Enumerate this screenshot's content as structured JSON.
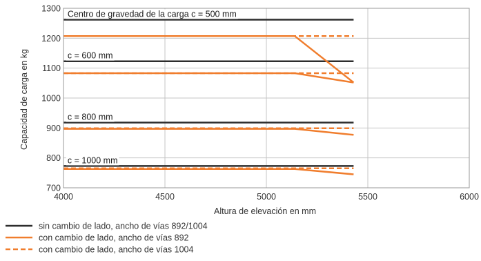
{
  "chart_data": {
    "type": "line",
    "x_label": "Altura de elevación en mm",
    "y_label": "Capacidad de carga en kg",
    "xlim": [
      4000,
      6000
    ],
    "ylim": [
      700,
      1300
    ],
    "x_ticks": [
      4000,
      4500,
      5000,
      5500,
      6000
    ],
    "y_ticks": [
      700,
      800,
      900,
      1000,
      1100,
      1200,
      1300
    ],
    "grid": true,
    "annotations": [
      {
        "text": "Centro de gravedad de la carga c = 500 mm",
        "x": 4020,
        "y": 1262
      },
      {
        "text": "c = 600 mm",
        "x": 4020,
        "y": 1123
      },
      {
        "text": "c = 800 mm",
        "x": 4020,
        "y": 918
      },
      {
        "text": "c = 1000 mm",
        "x": 4020,
        "y": 773
      }
    ],
    "series": [
      {
        "name": "sin cambio de lado, ancho de vías 892/1004",
        "style": "solid",
        "color": "#2d2d2d",
        "lines": [
          [
            [
              4000,
              1262
            ],
            [
              5430,
              1262
            ]
          ],
          [
            [
              4000,
              1123
            ],
            [
              5430,
              1123
            ]
          ],
          [
            [
              4000,
              918
            ],
            [
              5430,
              918
            ]
          ],
          [
            [
              4000,
              773
            ],
            [
              5430,
              773
            ]
          ]
        ]
      },
      {
        "name": "con cambio de lado, ancho de vías 892",
        "style": "solid",
        "color": "#f07d2d",
        "lines": [
          [
            [
              4000,
              1207
            ],
            [
              5140,
              1207
            ],
            [
              5430,
              1052
            ]
          ],
          [
            [
              4000,
              1083
            ],
            [
              5140,
              1083
            ],
            [
              5430,
              1052
            ]
          ],
          [
            [
              4000,
              897
            ],
            [
              5140,
              897
            ],
            [
              5430,
              877
            ]
          ],
          [
            [
              4000,
              763
            ],
            [
              5140,
              763
            ],
            [
              5430,
              745
            ]
          ]
        ]
      },
      {
        "name": "con cambio de lado, ancho de vías 1004",
        "style": "dashed",
        "color": "#f07d2d",
        "lines": [
          [
            [
              4000,
              1207
            ],
            [
              5430,
              1207
            ]
          ],
          [
            [
              4000,
              1083
            ],
            [
              5430,
              1083
            ]
          ],
          [
            [
              4000,
              899
            ],
            [
              5430,
              899
            ]
          ],
          [
            [
              4000,
              765
            ],
            [
              5430,
              765
            ]
          ]
        ]
      }
    ]
  }
}
